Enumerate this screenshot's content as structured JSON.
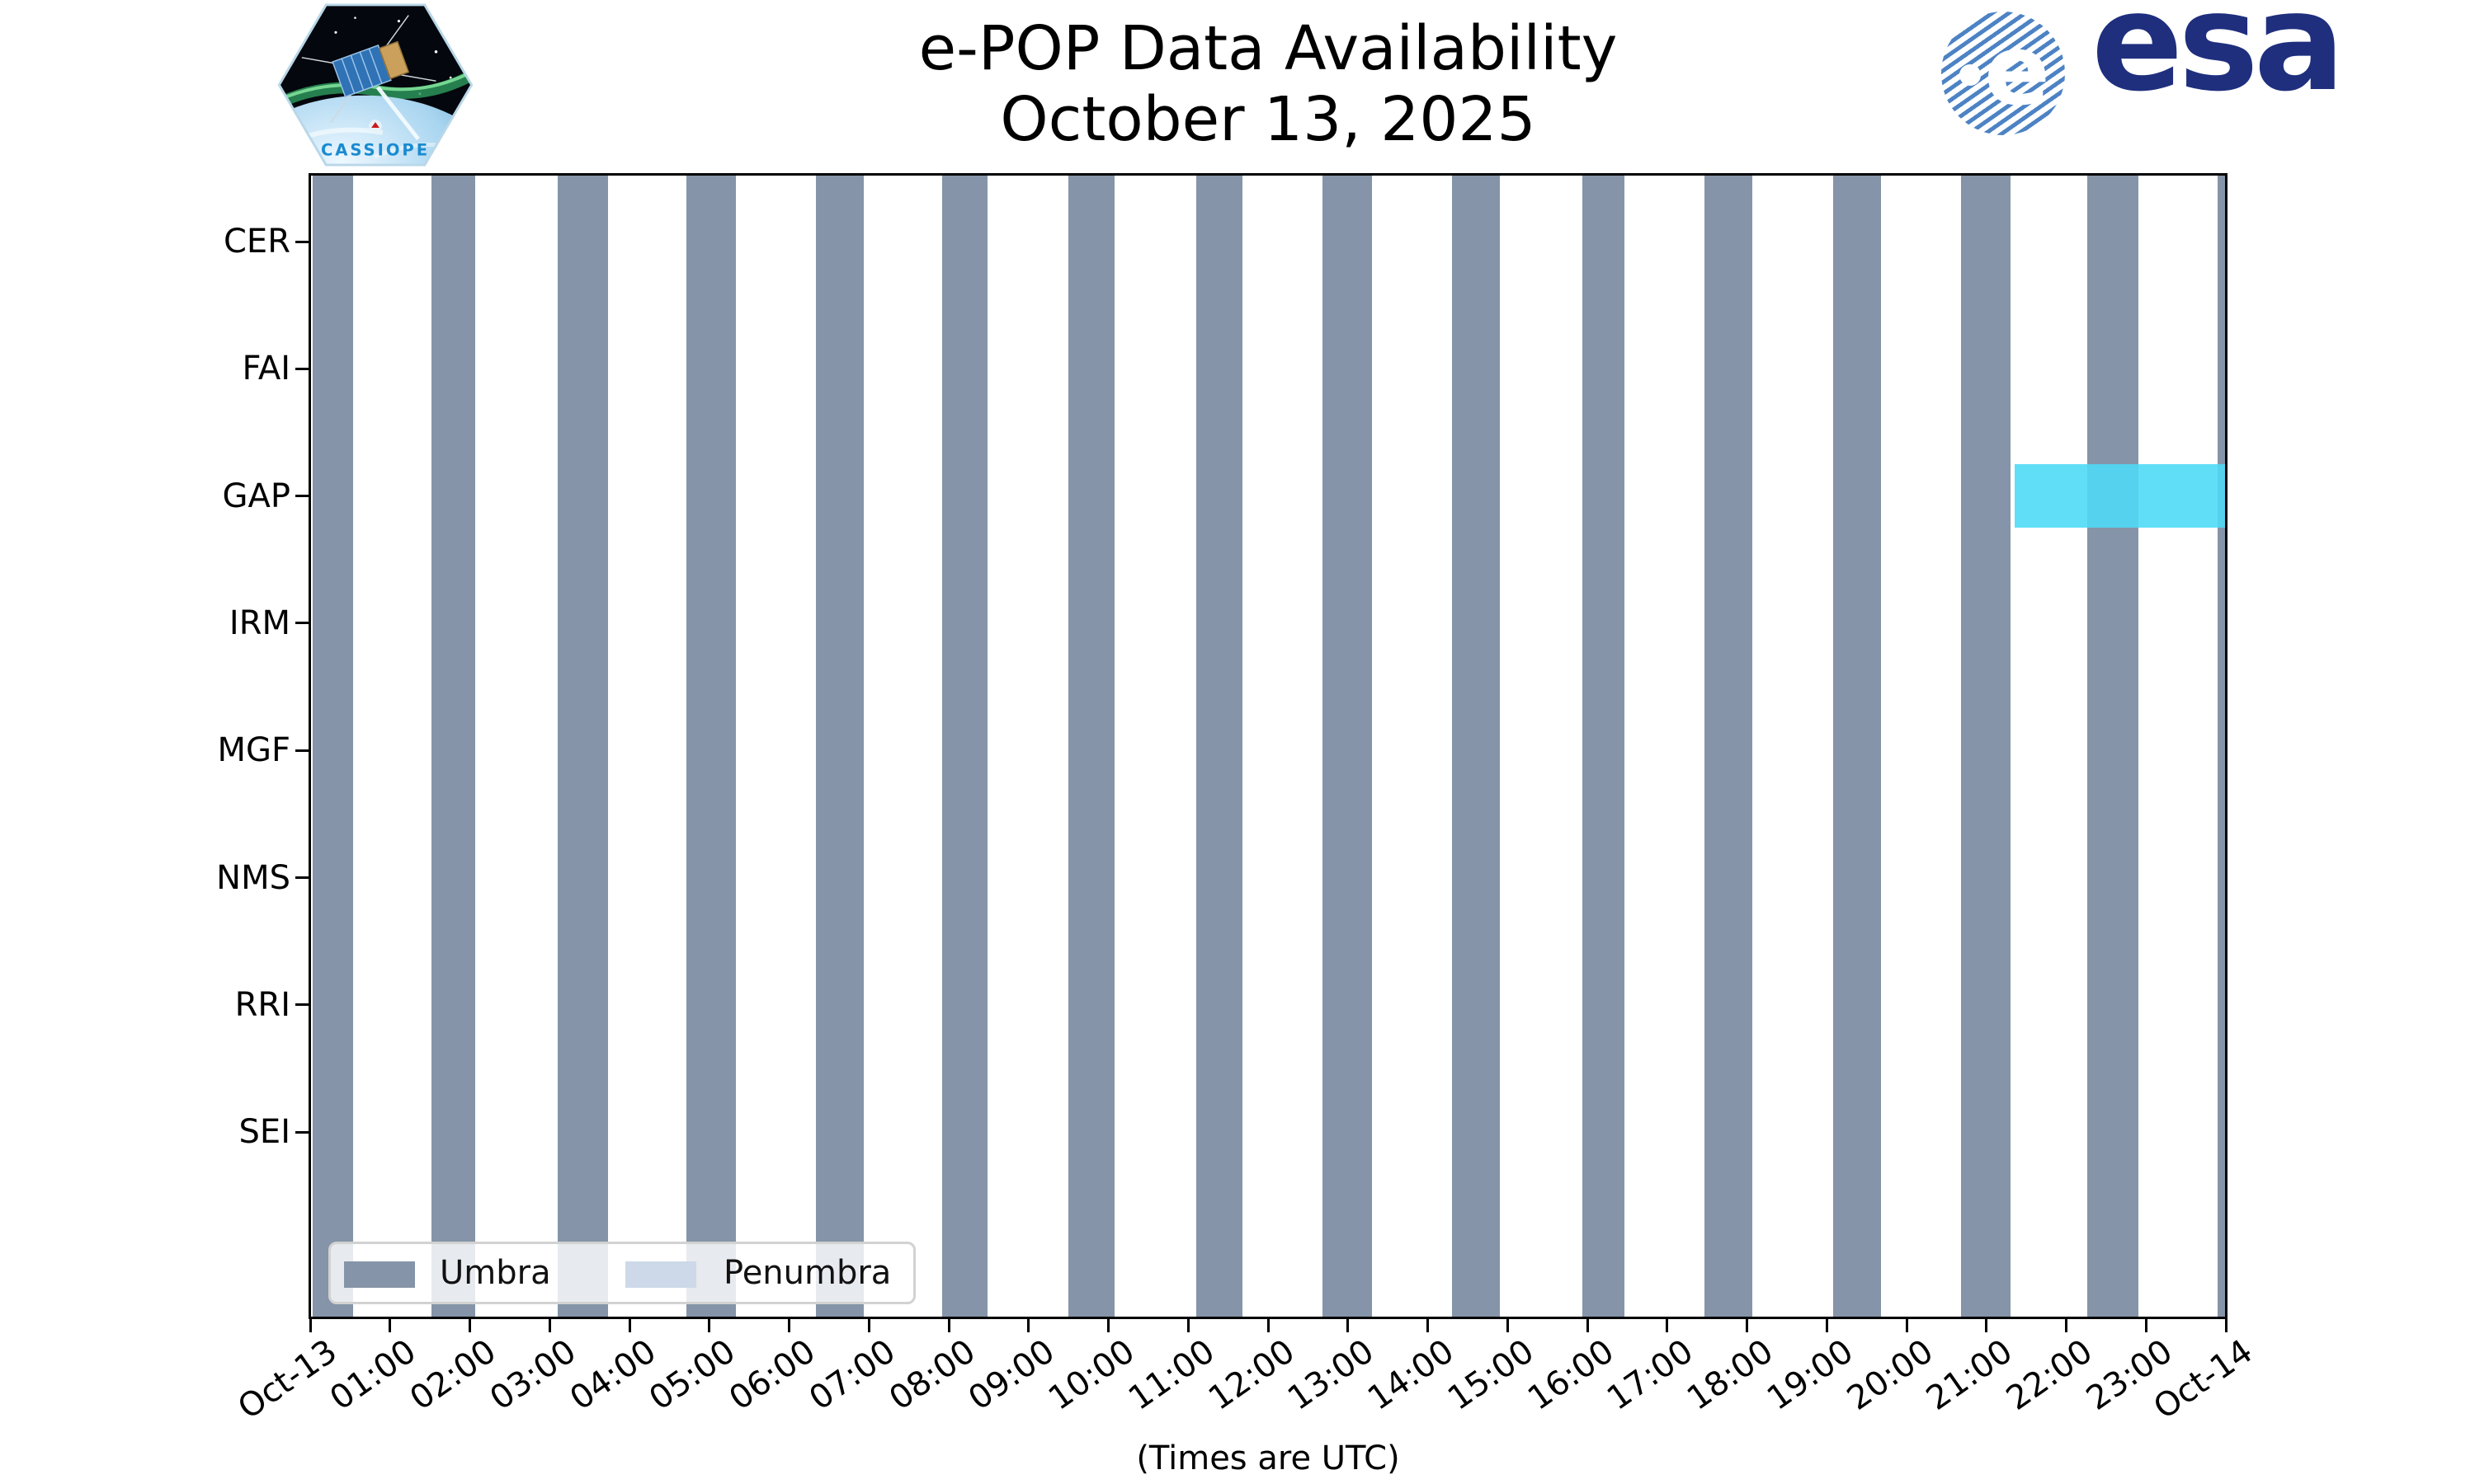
{
  "header": {
    "title_line1": "e-POP Data Availability",
    "title_line2": "October 13, 2025",
    "cassiope_patch_label": "CASSIOPE",
    "esa_wordmark": "esa",
    "esa_ball_letter": "e"
  },
  "axes": {
    "x_label": "(Times are UTC)",
    "x_tick_labels": [
      "Oct-13",
      "01:00",
      "02:00",
      "03:00",
      "04:00",
      "05:00",
      "06:00",
      "07:00",
      "08:00",
      "09:00",
      "10:00",
      "11:00",
      "12:00",
      "13:00",
      "14:00",
      "15:00",
      "16:00",
      "17:00",
      "18:00",
      "19:00",
      "20:00",
      "21:00",
      "22:00",
      "23:00",
      "Oct-14"
    ],
    "y_tick_labels": [
      "CER",
      "FAI",
      "GAP",
      "IRM",
      "MGF",
      "NMS",
      "RRI",
      "SEI"
    ]
  },
  "legend": {
    "items": [
      {
        "label": "Umbra",
        "color": "#8594a8"
      },
      {
        "label": "Penumbra",
        "color": "#cdd9e8"
      }
    ]
  },
  "colors": {
    "umbra": "#8594a8",
    "penumbra": "#cdd9e8",
    "availability_cyan": "#4edaf6",
    "esa_navy": "#1f2f7e",
    "cassiope_blue": "#1a8bd0"
  },
  "chart_data": {
    "type": "availability-timeline",
    "title": "e-POP Data Availability — October 13, 2025",
    "x_range_hours": [
      0,
      24
    ],
    "x_start_label": "Oct-13",
    "x_end_label": "Oct-14",
    "times_are": "UTC",
    "instruments": [
      "CER",
      "FAI",
      "GAP",
      "IRM",
      "MGF",
      "NMS",
      "RRI",
      "SEI"
    ],
    "umbra_intervals_utc": [
      [
        "00:02",
        "00:32"
      ],
      [
        "01:31",
        "02:04"
      ],
      [
        "03:06",
        "03:44"
      ],
      [
        "04:43",
        "05:20"
      ],
      [
        "06:20",
        "06:56"
      ],
      [
        "07:55",
        "08:29"
      ],
      [
        "09:30",
        "10:05"
      ],
      [
        "11:06",
        "11:41"
      ],
      [
        "12:41",
        "13:18"
      ],
      [
        "14:18",
        "14:54"
      ],
      [
        "15:56",
        "16:28"
      ],
      [
        "17:28",
        "18:04"
      ],
      [
        "19:05",
        "19:41"
      ],
      [
        "20:41",
        "21:18"
      ],
      [
        "22:16",
        "22:54"
      ],
      [
        "23:54",
        "24:00"
      ]
    ],
    "penumbra_intervals_utc": [],
    "availability_bars": [
      {
        "instrument": "GAP",
        "start_utc": "21:21",
        "end_utc": "24:00",
        "color": "#4edaf6"
      }
    ],
    "legend_position": "lower left",
    "grid": false
  }
}
